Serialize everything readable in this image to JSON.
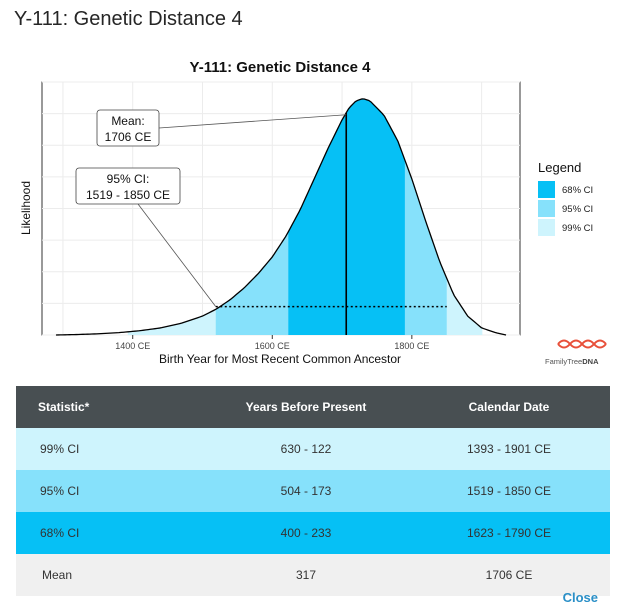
{
  "modal": {
    "title": "Y-111: Genetic Distance 4",
    "close_label": "Close"
  },
  "brand": {
    "logo_text_a": "FamilyTree",
    "logo_text_b": "DNA",
    "colors": {
      "ci68": "#06c0f5",
      "ci95": "#86e1fb",
      "ci99": "#cef4fd",
      "header": "#484f52",
      "link": "#2a8fc7",
      "logo": "#e8503a"
    }
  },
  "chart_data": {
    "type": "area",
    "title": "Y-111: Genetic Distance 4",
    "xlabel": "Birth Year for Most Recent Common Ancestor",
    "ylabel": "Likelihood",
    "x_ticks": [
      1400,
      1600,
      1800
    ],
    "x_tick_labels": [
      "1400 CE",
      "1600 CE",
      "1800 CE"
    ],
    "xlim": [
      1270,
      1955
    ],
    "ylim": [
      0,
      1.07
    ],
    "grid": true,
    "legend_position": "right",
    "legend_title": "Legend",
    "distribution": {
      "x": [
        1290,
        1320,
        1350,
        1380,
        1410,
        1440,
        1470,
        1500,
        1520,
        1540,
        1560,
        1580,
        1600,
        1620,
        1640,
        1660,
        1680,
        1700,
        1710,
        1720,
        1730,
        1740,
        1760,
        1780,
        1800,
        1820,
        1840,
        1860,
        1880,
        1900,
        1920,
        1935
      ],
      "y": [
        0.0,
        0.002,
        0.005,
        0.01,
        0.018,
        0.03,
        0.05,
        0.08,
        0.11,
        0.15,
        0.2,
        0.26,
        0.33,
        0.42,
        0.53,
        0.66,
        0.79,
        0.91,
        0.96,
        0.99,
        1.0,
        0.99,
        0.93,
        0.82,
        0.66,
        0.48,
        0.31,
        0.17,
        0.08,
        0.03,
        0.01,
        0.0
      ]
    },
    "bands": [
      {
        "label": "99% CI",
        "from": 1393,
        "to": 1901,
        "color": "#cef4fd"
      },
      {
        "label": "95% CI",
        "from": 1519,
        "to": 1850,
        "color": "#86e1fb"
      },
      {
        "label": "68% CI",
        "from": 1623,
        "to": 1790,
        "color": "#06c0f5"
      }
    ],
    "legend": [
      {
        "label": "68% CI",
        "color": "#06c0f5"
      },
      {
        "label": "95% CI",
        "color": "#86e1fb"
      },
      {
        "label": "99% CI",
        "color": "#cef4fd"
      }
    ],
    "mean": 1706,
    "ci95_line_level": 0.12,
    "annotations": [
      {
        "name": "mean-callout",
        "lines": [
          "Mean:",
          "1706 CE"
        ]
      },
      {
        "name": "ci95-callout",
        "lines": [
          "95% CI:",
          "1519 - 1850 CE"
        ]
      }
    ]
  },
  "table": {
    "headers": [
      "Statistic*",
      "Years Before Present",
      "Calendar Date"
    ],
    "rows": [
      [
        "99% CI",
        "630 - 122",
        "1393 - 1901 CE"
      ],
      [
        "95% CI",
        "504 - 173",
        "1519 - 1850 CE"
      ],
      [
        "68% CI",
        "400 - 233",
        "1623 - 1790 CE"
      ],
      [
        "Mean",
        "317",
        "1706 CE"
      ]
    ]
  }
}
